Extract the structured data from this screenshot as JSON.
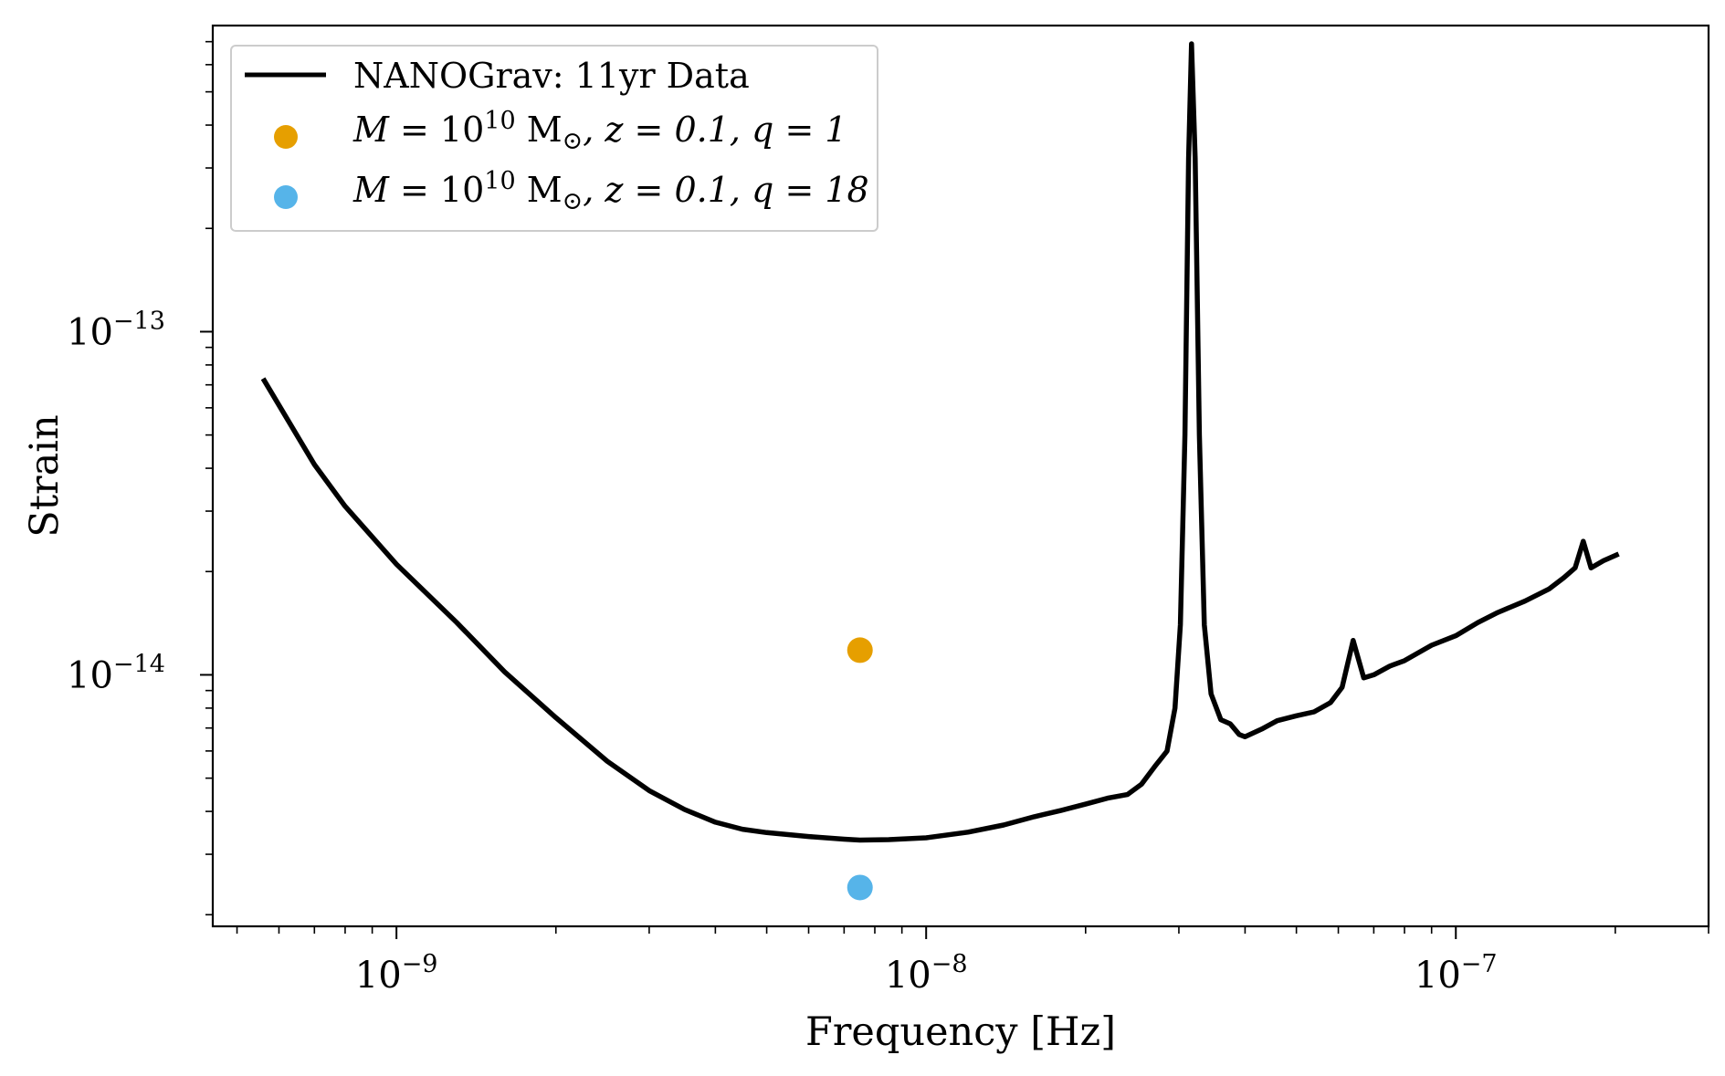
{
  "chart_data": {
    "type": "line",
    "xscale": "log",
    "yscale": "log",
    "xlabel": "Frequency [Hz]",
    "ylabel": "Strain",
    "xlim": [
      4.5e-10,
      3e-07
    ],
    "ylim": [
      1.85e-15,
      7.8e-13
    ],
    "grid": false,
    "legend_position": "top-left",
    "x_ticks": [
      {
        "value": 1e-09,
        "base": "10",
        "exp": "−9"
      },
      {
        "value": 1e-08,
        "base": "10",
        "exp": "−8"
      },
      {
        "value": 1e-07,
        "base": "10",
        "exp": "−7"
      }
    ],
    "y_ticks": [
      {
        "value": 1e-13,
        "base": "10",
        "exp": "−13"
      },
      {
        "value": 1e-14,
        "base": "10",
        "exp": "−14"
      }
    ],
    "series": [
      {
        "name": "NANOGrav: 11yr Data",
        "kind": "line",
        "color": "#000000",
        "points": [
          [
            5.6e-10,
            7.3e-14
          ],
          [
            7e-10,
            4.1e-14
          ],
          [
            8e-10,
            3.1e-14
          ],
          [
            1e-09,
            2.1e-14
          ],
          [
            1.3e-09,
            1.42e-14
          ],
          [
            1.6e-09,
            1.02e-14
          ],
          [
            2e-09,
            7.5e-15
          ],
          [
            2.5e-09,
            5.6e-15
          ],
          [
            3e-09,
            4.6e-15
          ],
          [
            3.5e-09,
            4.05e-15
          ],
          [
            4e-09,
            3.72e-15
          ],
          [
            4.5e-09,
            3.55e-15
          ],
          [
            5e-09,
            3.47e-15
          ],
          [
            6e-09,
            3.38e-15
          ],
          [
            7e-09,
            3.32e-15
          ],
          [
            7.5e-09,
            3.3e-15
          ],
          [
            8.5e-09,
            3.31e-15
          ],
          [
            1e-08,
            3.35e-15
          ],
          [
            1.2e-08,
            3.48e-15
          ],
          [
            1.4e-08,
            3.65e-15
          ],
          [
            1.6e-08,
            3.86e-15
          ],
          [
            1.8e-08,
            4.03e-15
          ],
          [
            2e-08,
            4.2e-15
          ],
          [
            2.2e-08,
            4.37e-15
          ],
          [
            2.4e-08,
            4.48e-15
          ],
          [
            2.55e-08,
            4.8e-15
          ],
          [
            2.7e-08,
            5.4e-15
          ],
          [
            2.85e-08,
            6e-15
          ],
          [
            2.95e-08,
            8e-15
          ],
          [
            3.02e-08,
            1.4e-14
          ],
          [
            3.08e-08,
            5e-14
          ],
          [
            3.13e-08,
            3.2e-13
          ],
          [
            3.17e-08,
            6.9e-13
          ],
          [
            3.22e-08,
            3.2e-13
          ],
          [
            3.28e-08,
            5e-14
          ],
          [
            3.35e-08,
            1.4e-14
          ],
          [
            3.45e-08,
            8.8e-15
          ],
          [
            3.6e-08,
            7.4e-15
          ],
          [
            3.75e-08,
            7.2e-15
          ],
          [
            3.9e-08,
            6.7e-15
          ],
          [
            4e-08,
            6.6e-15
          ],
          [
            4.3e-08,
            6.95e-15
          ],
          [
            4.6e-08,
            7.35e-15
          ],
          [
            5e-08,
            7.6e-15
          ],
          [
            5.4e-08,
            7.8e-15
          ],
          [
            5.8e-08,
            8.3e-15
          ],
          [
            6.1e-08,
            9.2e-15
          ],
          [
            6.4e-08,
            1.26e-14
          ],
          [
            6.7e-08,
            9.8e-15
          ],
          [
            7e-08,
            1e-14
          ],
          [
            7.5e-08,
            1.06e-14
          ],
          [
            8e-08,
            1.1e-14
          ],
          [
            9e-08,
            1.22e-14
          ],
          [
            1e-07,
            1.3e-14
          ],
          [
            1.1e-07,
            1.42e-14
          ],
          [
            1.2e-07,
            1.52e-14
          ],
          [
            1.35e-07,
            1.64e-14
          ],
          [
            1.5e-07,
            1.78e-14
          ],
          [
            1.6e-07,
            1.92e-14
          ],
          [
            1.68e-07,
            2.05e-14
          ],
          [
            1.74e-07,
            2.45e-14
          ],
          [
            1.8e-07,
            2.05e-14
          ],
          [
            1.9e-07,
            2.15e-14
          ],
          [
            2.03e-07,
            2.25e-14
          ]
        ]
      },
      {
        "name": "M = 10^10 M⊙, z = 0.1, q = 1",
        "kind": "scatter",
        "color": "#E69F00",
        "points": [
          [
            7.5e-09,
            1.18e-14
          ]
        ]
      },
      {
        "name": "M = 10^10 M⊙, z = 0.1, q = 18",
        "kind": "scatter",
        "color": "#56B4E9",
        "points": [
          [
            7.5e-09,
            2.4e-15
          ]
        ]
      }
    ],
    "legend": {
      "line_label": "NANOGrav: 11yr Data",
      "q1": {
        "M": "M",
        "eq": " = 10",
        "exp": "10",
        "unit": " M",
        "sun": "⊙",
        "z": ", z = 0.1, ",
        "q": "q = 1"
      },
      "q18": {
        "M": "M",
        "eq": " = 10",
        "exp": "10",
        "unit": " M",
        "sun": "⊙",
        "z": ", z = 0.1, ",
        "q": "q = 18"
      }
    }
  }
}
